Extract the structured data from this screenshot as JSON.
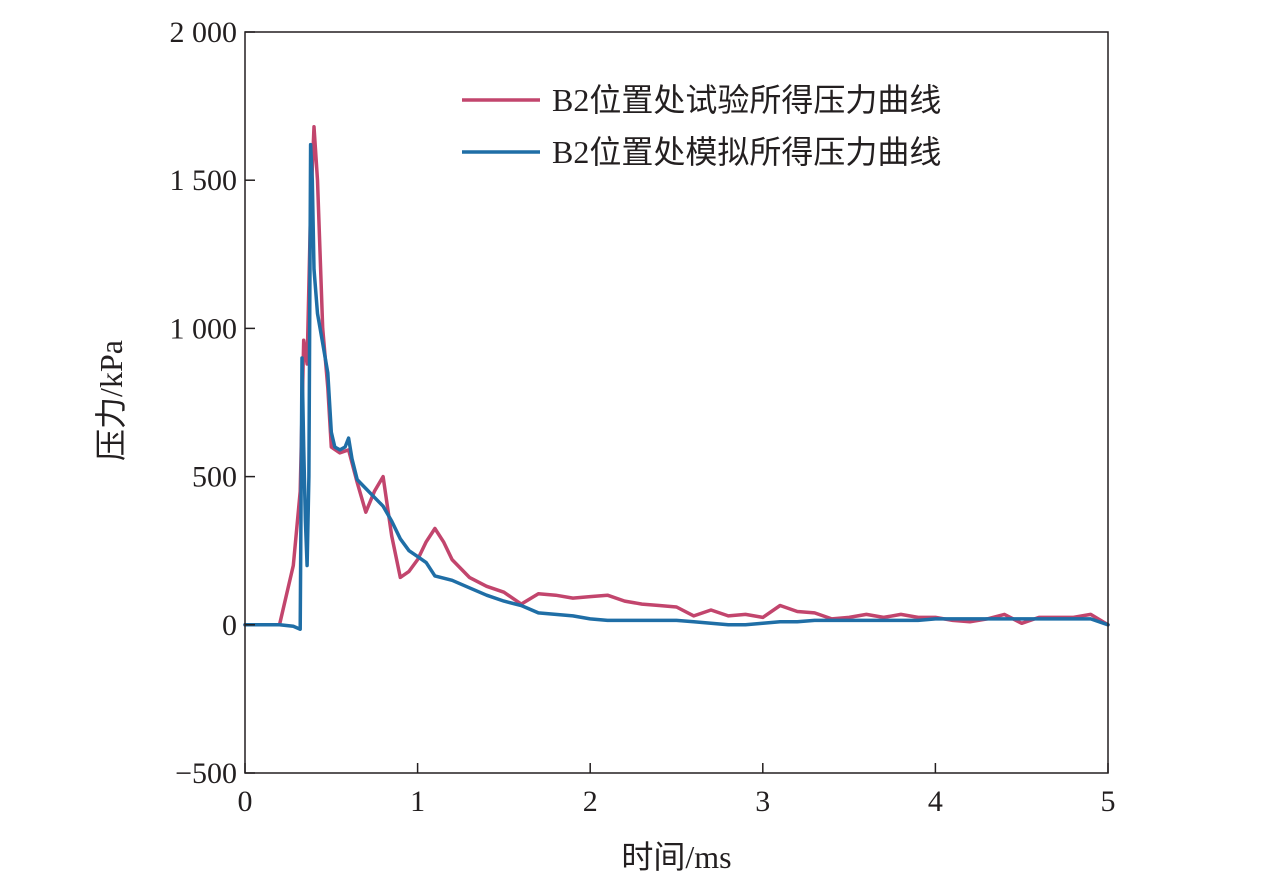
{
  "chart_data": {
    "type": "line",
    "title": "",
    "xlabel": "时间/ms",
    "ylabel": "压力/kPa",
    "xlim": [
      0,
      5
    ],
    "ylim": [
      -500,
      2000
    ],
    "x_ticks": [
      0,
      1,
      2,
      3,
      4,
      5
    ],
    "x_tick_labels": [
      "0",
      "1",
      "2",
      "3",
      "4",
      "5"
    ],
    "y_ticks": [
      -500,
      0,
      500,
      1000,
      1500,
      2000
    ],
    "y_tick_labels": [
      "−500",
      "0",
      "500",
      "1 000",
      "1 500",
      "2 000"
    ],
    "grid": false,
    "legend_position": "top-right",
    "series": [
      {
        "name": "B2位置处试验所得压力曲线",
        "color": "#c2456d",
        "points": [
          [
            0,
            0
          ],
          [
            0.2,
            0
          ],
          [
            0.28,
            200
          ],
          [
            0.32,
            450
          ],
          [
            0.34,
            960
          ],
          [
            0.36,
            880
          ],
          [
            0.38,
            1400
          ],
          [
            0.4,
            1680
          ],
          [
            0.42,
            1500
          ],
          [
            0.45,
            1000
          ],
          [
            0.48,
            800
          ],
          [
            0.5,
            600
          ],
          [
            0.55,
            580
          ],
          [
            0.6,
            590
          ],
          [
            0.65,
            480
          ],
          [
            0.7,
            380
          ],
          [
            0.75,
            450
          ],
          [
            0.8,
            500
          ],
          [
            0.85,
            300
          ],
          [
            0.9,
            160
          ],
          [
            0.95,
            180
          ],
          [
            1.0,
            220
          ],
          [
            1.05,
            280
          ],
          [
            1.1,
            325
          ],
          [
            1.15,
            280
          ],
          [
            1.2,
            220
          ],
          [
            1.3,
            160
          ],
          [
            1.4,
            130
          ],
          [
            1.5,
            110
          ],
          [
            1.6,
            70
          ],
          [
            1.7,
            105
          ],
          [
            1.8,
            100
          ],
          [
            1.9,
            90
          ],
          [
            2.0,
            95
          ],
          [
            2.1,
            100
          ],
          [
            2.2,
            80
          ],
          [
            2.3,
            70
          ],
          [
            2.4,
            65
          ],
          [
            2.5,
            60
          ],
          [
            2.6,
            30
          ],
          [
            2.7,
            50
          ],
          [
            2.8,
            30
          ],
          [
            2.9,
            35
          ],
          [
            3.0,
            25
          ],
          [
            3.1,
            65
          ],
          [
            3.2,
            45
          ],
          [
            3.3,
            40
          ],
          [
            3.4,
            20
          ],
          [
            3.5,
            25
          ],
          [
            3.6,
            35
          ],
          [
            3.7,
            25
          ],
          [
            3.8,
            35
          ],
          [
            3.9,
            25
          ],
          [
            4.0,
            25
          ],
          [
            4.1,
            15
          ],
          [
            4.2,
            10
          ],
          [
            4.3,
            20
          ],
          [
            4.4,
            35
          ],
          [
            4.5,
            5
          ],
          [
            4.6,
            25
          ],
          [
            4.7,
            25
          ],
          [
            4.8,
            25
          ],
          [
            4.9,
            35
          ],
          [
            5.0,
            0
          ]
        ]
      },
      {
        "name": "B2位置处模拟所得压力曲线",
        "color": "#1f6ea6",
        "points": [
          [
            0,
            0
          ],
          [
            0.2,
            0
          ],
          [
            0.28,
            -5
          ],
          [
            0.32,
            -15
          ],
          [
            0.33,
            900
          ],
          [
            0.34,
            600
          ],
          [
            0.35,
            350
          ],
          [
            0.36,
            200
          ],
          [
            0.37,
            500
          ],
          [
            0.38,
            1620
          ],
          [
            0.39,
            1500
          ],
          [
            0.4,
            1200
          ],
          [
            0.42,
            1050
          ],
          [
            0.45,
            950
          ],
          [
            0.48,
            850
          ],
          [
            0.5,
            650
          ],
          [
            0.52,
            600
          ],
          [
            0.55,
            590
          ],
          [
            0.58,
            600
          ],
          [
            0.6,
            630
          ],
          [
            0.62,
            560
          ],
          [
            0.65,
            490
          ],
          [
            0.7,
            460
          ],
          [
            0.75,
            430
          ],
          [
            0.8,
            400
          ],
          [
            0.85,
            350
          ],
          [
            0.9,
            290
          ],
          [
            0.95,
            250
          ],
          [
            1.0,
            230
          ],
          [
            1.05,
            210
          ],
          [
            1.1,
            165
          ],
          [
            1.2,
            150
          ],
          [
            1.3,
            125
          ],
          [
            1.4,
            100
          ],
          [
            1.5,
            80
          ],
          [
            1.6,
            65
          ],
          [
            1.7,
            40
          ],
          [
            1.8,
            35
          ],
          [
            1.9,
            30
          ],
          [
            2.0,
            20
          ],
          [
            2.1,
            15
          ],
          [
            2.2,
            15
          ],
          [
            2.3,
            15
          ],
          [
            2.4,
            15
          ],
          [
            2.5,
            15
          ],
          [
            2.6,
            10
          ],
          [
            2.7,
            5
          ],
          [
            2.8,
            0
          ],
          [
            2.9,
            0
          ],
          [
            3.0,
            5
          ],
          [
            3.1,
            10
          ],
          [
            3.2,
            10
          ],
          [
            3.3,
            15
          ],
          [
            3.4,
            15
          ],
          [
            3.5,
            15
          ],
          [
            3.6,
            15
          ],
          [
            3.7,
            15
          ],
          [
            3.8,
            15
          ],
          [
            3.9,
            15
          ],
          [
            4.0,
            20
          ],
          [
            4.1,
            20
          ],
          [
            4.2,
            20
          ],
          [
            4.3,
            20
          ],
          [
            4.4,
            20
          ],
          [
            4.5,
            20
          ],
          [
            4.6,
            20
          ],
          [
            4.7,
            20
          ],
          [
            4.8,
            20
          ],
          [
            4.9,
            20
          ],
          [
            5.0,
            0
          ]
        ]
      }
    ]
  }
}
